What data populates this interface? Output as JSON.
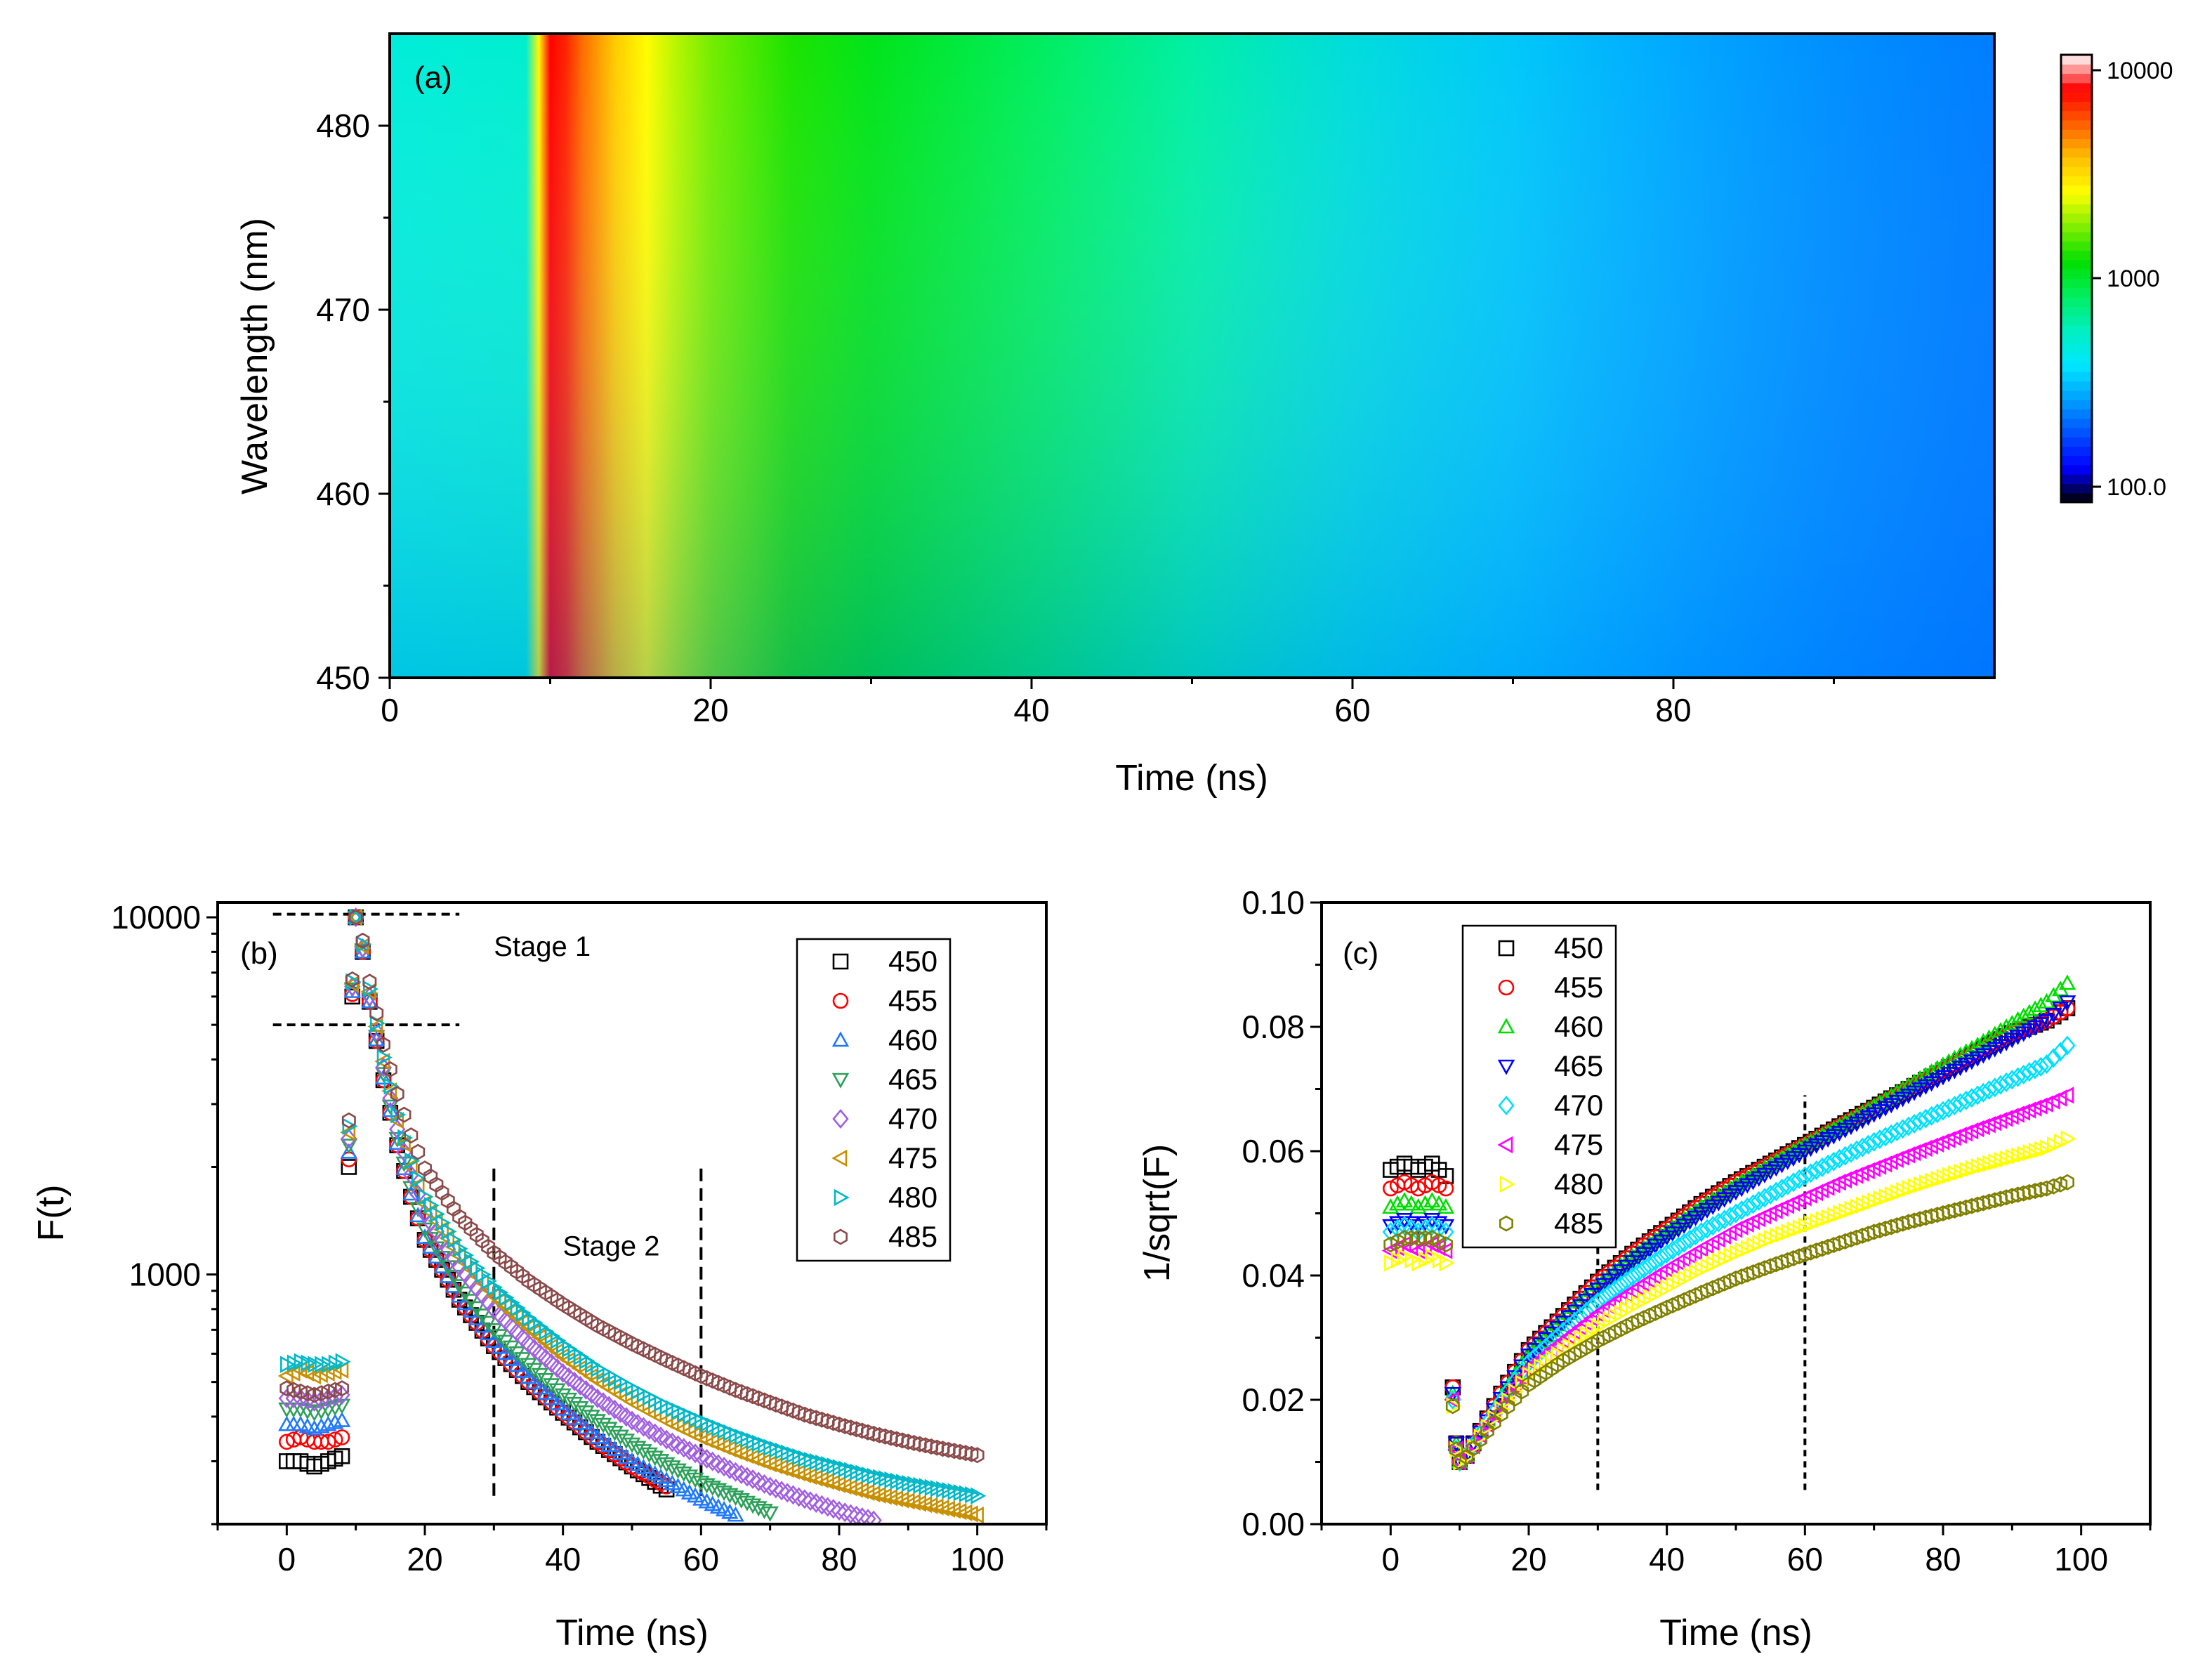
{
  "chart_data": [
    {
      "id": "a",
      "type": "heatmap",
      "panel_label": "(a)",
      "xlabel": "Time (ns)",
      "ylabel": "Wavelength (nm)",
      "xlim": [
        0,
        100
      ],
      "ylim": [
        450,
        485
      ],
      "xticks": [
        0,
        20,
        40,
        60,
        80
      ],
      "xtick_labels": [
        "0",
        "20",
        "40",
        "60",
        "80"
      ],
      "yticks": [
        450,
        460,
        470,
        480
      ],
      "ytick_labels": [
        "450",
        "460",
        "470",
        "480"
      ],
      "colorbar": {
        "scale": "log",
        "range": [
          100,
          10000
        ],
        "tick_values": [
          10000,
          1000,
          100
        ],
        "tick_labels": [
          "10000",
          "1000",
          "100.0"
        ],
        "colormap": [
          "#000000",
          "#0000ff",
          "#0050ff",
          "#00a0ff",
          "#00e8ff",
          "#00f0c0",
          "#00ee60",
          "#00e000",
          "#80ee00",
          "#ffff00",
          "#ffc000",
          "#ff6000",
          "#ff0000",
          "#ffffff"
        ]
      },
      "intensity_profile": {
        "time_ns": [
          0,
          8.5,
          9.3,
          10,
          11,
          12,
          14,
          16,
          18,
          20,
          25,
          30,
          40,
          50,
          60,
          70,
          80,
          90,
          100
        ],
        "counts_at_450nm": [
          450,
          480,
          3000,
          10000,
          8500,
          6000,
          3800,
          2700,
          2000,
          1600,
          1200,
          950,
          700,
          480,
          330,
          260,
          210,
          170,
          150
        ],
        "counts_at_485nm": [
          450,
          480,
          3000,
          10000,
          8500,
          6500,
          4300,
          3100,
          2400,
          2000,
          1500,
          1250,
          950,
          720,
          580,
          480,
          410,
          370,
          340
        ]
      }
    },
    {
      "id": "b",
      "type": "scatter",
      "panel_label": "(b)",
      "xlabel": "Time (ns)",
      "ylabel": "F(t)",
      "yscale": "log",
      "xlim": [
        -10,
        110
      ],
      "ylim": [
        200,
        11000
      ],
      "xticks": [
        0,
        20,
        40,
        60,
        80,
        100
      ],
      "xtick_labels": [
        "0",
        "20",
        "40",
        "60",
        "80",
        "100"
      ],
      "yticks": [
        1000,
        10000
      ],
      "ytick_labels": [
        "1000",
        "10000"
      ],
      "legend_position": "top-right",
      "annotations": [
        {
          "text": "Stage 1",
          "x": 37,
          "y": 7800
        },
        {
          "text": "Stage 2",
          "x": 47,
          "y": 1130
        }
      ],
      "reference_lines": [
        {
          "kind": "h",
          "y": 10200,
          "x_from": -2,
          "x_to": 25
        },
        {
          "kind": "h",
          "y": 5000,
          "x_from": -2,
          "x_to": 25
        },
        {
          "kind": "v",
          "x": 30,
          "y_from": 240,
          "y_to": 2000
        },
        {
          "kind": "v",
          "x": 60,
          "y_from": 240,
          "y_to": 2000
        }
      ],
      "x": [
        0,
        2,
        4,
        6,
        8,
        9,
        9.5,
        10,
        11,
        12,
        14,
        16,
        18,
        20,
        25,
        30,
        35,
        40,
        45,
        50,
        55,
        60,
        65,
        70,
        75,
        80,
        85,
        90,
        95,
        100
      ],
      "series": [
        {
          "name": "450",
          "marker": "square",
          "color": "#000000",
          "values": [
            300,
            300,
            290,
            300,
            310,
            2000,
            6000,
            10000,
            8000,
            5800,
            3500,
            2300,
            1650,
            1250,
            850,
            630,
            500,
            410,
            340,
            290,
            250,
            null,
            null,
            null,
            null,
            null,
            null,
            null,
            null,
            null
          ]
        },
        {
          "name": "455",
          "marker": "circle",
          "color": "#ff0000",
          "values": [
            340,
            350,
            340,
            340,
            350,
            2100,
            6100,
            10000,
            8000,
            5800,
            3500,
            2300,
            1650,
            1250,
            850,
            630,
            500,
            410,
            340,
            290,
            255,
            null,
            null,
            null,
            null,
            null,
            null,
            null,
            null,
            null
          ]
        },
        {
          "name": "460",
          "marker": "triangle-up",
          "color": "#1f78ff",
          "values": [
            380,
            380,
            370,
            380,
            390,
            2200,
            6200,
            10000,
            8000,
            5800,
            3550,
            2330,
            1680,
            1270,
            870,
            650,
            515,
            420,
            350,
            300,
            265,
            235,
            212,
            null,
            null,
            null,
            null,
            null,
            null,
            null
          ]
        },
        {
          "name": "465",
          "marker": "triangle-down",
          "color": "#2ca05a",
          "values": [
            420,
            420,
            410,
            420,
            430,
            2300,
            6300,
            10000,
            8100,
            5900,
            3650,
            2400,
            1750,
            1340,
            930,
            700,
            560,
            460,
            390,
            335,
            295,
            262,
            238,
            215,
            null,
            null,
            null,
            null,
            null,
            null
          ]
        },
        {
          "name": "470",
          "marker": "diamond",
          "color": "#a060e0",
          "values": [
            450,
            450,
            440,
            450,
            460,
            2400,
            6400,
            10000,
            8200,
            6000,
            3800,
            2550,
            1900,
            1480,
            1050,
            800,
            640,
            530,
            450,
            390,
            345,
            310,
            280,
            255,
            235,
            218,
            205,
            null,
            null,
            null
          ]
        },
        {
          "name": "475",
          "marker": "triangle-left",
          "color": "#c89000",
          "values": [
            520,
            540,
            520,
            530,
            540,
            2500,
            6500,
            10000,
            8300,
            6200,
            3950,
            2700,
            2000,
            1580,
            1130,
            870,
            710,
            590,
            505,
            440,
            390,
            350,
            320,
            295,
            275,
            258,
            243,
            232,
            222,
            212
          ]
        },
        {
          "name": "480",
          "marker": "triangle-right",
          "color": "#00b8c8",
          "values": [
            560,
            570,
            560,
            560,
            570,
            2600,
            6600,
            10000,
            8400,
            6300,
            4050,
            2800,
            2080,
            1650,
            1180,
            920,
            755,
            635,
            545,
            480,
            428,
            388,
            355,
            328,
            305,
            288,
            272,
            260,
            250,
            240
          ]
        },
        {
          "name": "485",
          "marker": "hexagon",
          "color": "#8b4a4a",
          "values": [
            480,
            470,
            460,
            470,
            480,
            2700,
            6700,
            10000,
            8600,
            6600,
            4400,
            3200,
            2450,
            1980,
            1450,
            1150,
            960,
            825,
            720,
            640,
            575,
            520,
            475,
            438,
            405,
            380,
            358,
            340,
            325,
            312
          ]
        }
      ]
    },
    {
      "id": "c",
      "type": "scatter",
      "panel_label": "(c)",
      "xlabel": "Time (ns)",
      "ylabel": "1/sqrt(F)",
      "xlim": [
        -10,
        110
      ],
      "ylim": [
        0.0,
        0.1
      ],
      "xticks": [
        0,
        20,
        40,
        60,
        80,
        100
      ],
      "xtick_labels": [
        "0",
        "20",
        "40",
        "60",
        "80",
        "100"
      ],
      "yticks": [
        0.0,
        0.02,
        0.04,
        0.06,
        0.08,
        0.1
      ],
      "ytick_labels": [
        "0.00",
        "0.02",
        "0.04",
        "0.06",
        "0.08",
        "0.10"
      ],
      "legend_position": "top-left",
      "reference_lines": [
        {
          "kind": "v",
          "x": 30,
          "y_from": 0.0055,
          "y_to": 0.05
        },
        {
          "kind": "v",
          "x": 60,
          "y_from": 0.0055,
          "y_to": 0.069
        }
      ],
      "x": [
        0,
        2,
        4,
        6,
        8,
        9,
        9.5,
        10,
        11,
        12,
        14,
        16,
        18,
        20,
        25,
        30,
        35,
        40,
        45,
        50,
        55,
        60,
        65,
        70,
        75,
        80,
        85,
        90,
        95,
        98
      ],
      "series": [
        {
          "name": "450",
          "marker": "square",
          "color": "#000000",
          "values": [
            0.057,
            0.058,
            0.057,
            0.058,
            0.056,
            0.022,
            0.013,
            0.01,
            0.011,
            0.013,
            0.017,
            0.021,
            0.0245,
            0.028,
            0.0335,
            0.039,
            0.0435,
            0.0475,
            0.0515,
            0.055,
            0.058,
            0.061,
            0.064,
            0.067,
            0.07,
            0.073,
            0.076,
            0.079,
            0.081,
            0.083
          ]
        },
        {
          "name": "455",
          "marker": "circle",
          "color": "#ff0000",
          "values": [
            0.054,
            0.055,
            0.054,
            0.055,
            0.054,
            0.022,
            0.013,
            0.01,
            0.011,
            0.013,
            0.017,
            0.021,
            0.0245,
            0.028,
            0.0335,
            0.039,
            0.0435,
            0.0475,
            0.0515,
            0.055,
            0.058,
            0.061,
            0.064,
            0.067,
            0.07,
            0.073,
            0.076,
            0.079,
            0.081,
            0.083
          ]
        },
        {
          "name": "460",
          "marker": "triangle-up",
          "color": "#00dd00",
          "values": [
            0.051,
            0.052,
            0.051,
            0.052,
            0.051,
            0.021,
            0.013,
            0.01,
            0.011,
            0.013,
            0.0168,
            0.0205,
            0.024,
            0.0275,
            0.033,
            0.0385,
            0.043,
            0.047,
            0.051,
            0.0545,
            0.0578,
            0.061,
            0.064,
            0.0672,
            0.0705,
            0.0738,
            0.077,
            0.0805,
            0.084,
            0.087
          ]
        },
        {
          "name": "465",
          "marker": "triangle-down",
          "color": "#0000ff",
          "values": [
            0.048,
            0.049,
            0.048,
            0.049,
            0.048,
            0.021,
            0.013,
            0.01,
            0.011,
            0.013,
            0.0166,
            0.0202,
            0.0237,
            0.0272,
            0.0325,
            0.0378,
            0.0422,
            0.0462,
            0.05,
            0.0535,
            0.0568,
            0.06,
            0.063,
            0.066,
            0.069,
            0.072,
            0.075,
            0.078,
            0.081,
            0.084
          ]
        },
        {
          "name": "470",
          "marker": "diamond",
          "color": "#00e0ff",
          "values": [
            0.047,
            0.048,
            0.047,
            0.048,
            0.047,
            0.02,
            0.012,
            0.01,
            0.011,
            0.0128,
            0.0163,
            0.0197,
            0.023,
            0.026,
            0.031,
            0.0358,
            0.0398,
            0.0435,
            0.047,
            0.05,
            0.053,
            0.056,
            0.0588,
            0.0615,
            0.064,
            0.0665,
            0.069,
            0.0715,
            0.074,
            0.077
          ]
        },
        {
          "name": "475",
          "marker": "triangle-left",
          "color": "#ff00ff",
          "values": [
            0.044,
            0.045,
            0.044,
            0.045,
            0.044,
            0.02,
            0.012,
            0.01,
            0.011,
            0.0126,
            0.016,
            0.019,
            0.0222,
            0.025,
            0.0295,
            0.0338,
            0.0375,
            0.041,
            0.0443,
            0.0474,
            0.05,
            0.0525,
            0.055,
            0.0572,
            0.0594,
            0.0615,
            0.0636,
            0.0656,
            0.0676,
            0.069
          ]
        },
        {
          "name": "480",
          "marker": "triangle-right",
          "color": "#ffff00",
          "values": [
            0.042,
            0.043,
            0.042,
            0.043,
            0.042,
            0.019,
            0.012,
            0.01,
            0.0108,
            0.0124,
            0.0156,
            0.0185,
            0.0213,
            0.024,
            0.028,
            0.0318,
            0.035,
            0.038,
            0.041,
            0.0436,
            0.046,
            0.048,
            0.05,
            0.052,
            0.054,
            0.0558,
            0.0575,
            0.059,
            0.0605,
            0.062
          ]
        },
        {
          "name": "485",
          "marker": "hexagon",
          "color": "#808000",
          "values": [
            0.045,
            0.046,
            0.046,
            0.046,
            0.045,
            0.019,
            0.012,
            0.01,
            0.0108,
            0.0122,
            0.015,
            0.0177,
            0.0202,
            0.0225,
            0.0263,
            0.0295,
            0.0323,
            0.0348,
            0.0372,
            0.0395,
            0.0415,
            0.0434,
            0.0452,
            0.047,
            0.0486,
            0.05,
            0.0514,
            0.0528,
            0.054,
            0.055
          ]
        }
      ]
    }
  ]
}
